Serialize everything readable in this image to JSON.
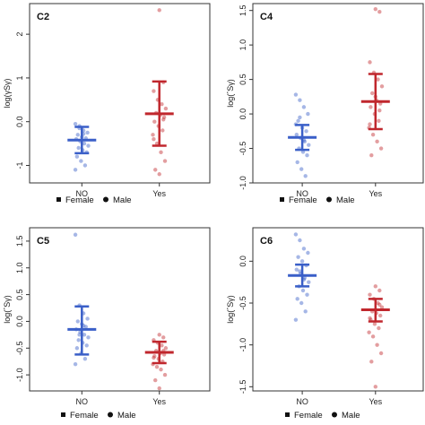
{
  "chart_data": [
    {
      "type": "scatter",
      "title": "C2",
      "ylabel": "log(γSγ)",
      "categories": [
        "NO",
        "Yes"
      ],
      "ylim": [
        -1.4,
        2.7
      ],
      "yticks": [
        -1,
        0,
        1,
        2
      ],
      "series": [
        {
          "category": "NO",
          "color": "#3a5fc8",
          "mean": -0.42,
          "lower": -0.72,
          "upper": -0.12,
          "points": [
            -0.05,
            -0.1,
            -0.2,
            -0.25,
            -0.3,
            -0.35,
            -0.38,
            -0.4,
            -0.45,
            -0.5,
            -0.55,
            -0.6,
            -0.65,
            -0.7,
            -0.8,
            -0.9,
            -1.0,
            -1.1,
            -0.15,
            -0.28
          ]
        },
        {
          "category": "Yes",
          "color": "#c0272d",
          "mean": 0.18,
          "lower": -0.55,
          "upper": 0.92,
          "points": [
            2.55,
            0.9,
            0.7,
            0.5,
            0.4,
            0.3,
            0.2,
            0.15,
            0.1,
            0.0,
            -0.1,
            -0.2,
            -0.3,
            -0.5,
            -0.7,
            -0.9,
            -1.1,
            -1.2,
            0.05,
            -0.4
          ]
        }
      ],
      "legend": [
        "Female",
        "Male"
      ]
    },
    {
      "type": "scatter",
      "title": "C4",
      "ylabel": "log(ˆSγ)",
      "categories": [
        "NO",
        "Yes"
      ],
      "ylim": [
        -1.0,
        1.6
      ],
      "yticks": [
        -1.0,
        -0.5,
        0.0,
        0.5,
        1.0,
        1.5
      ],
      "series": [
        {
          "category": "NO",
          "color": "#3a5fc8",
          "mean": -0.34,
          "lower": -0.52,
          "upper": -0.16,
          "points": [
            0.28,
            0.2,
            0.1,
            0.0,
            -0.1,
            -0.2,
            -0.25,
            -0.3,
            -0.35,
            -0.4,
            -0.45,
            -0.5,
            -0.55,
            -0.6,
            -0.7,
            -0.8,
            -0.9,
            -0.15,
            -0.05,
            -0.38
          ]
        },
        {
          "category": "Yes",
          "color": "#c0272d",
          "mean": 0.18,
          "lower": -0.22,
          "upper": 0.58,
          "points": [
            1.52,
            1.48,
            0.75,
            0.6,
            0.5,
            0.4,
            0.3,
            0.2,
            0.15,
            0.1,
            0.0,
            -0.1,
            -0.2,
            -0.3,
            -0.4,
            -0.5,
            -0.6,
            0.25,
            0.05,
            -0.15
          ]
        }
      ],
      "legend": [
        "Female",
        "Male"
      ]
    },
    {
      "type": "scatter",
      "title": "C5",
      "ylabel": "log(ˆSγ)",
      "categories": [
        "NO",
        "Yes"
      ],
      "ylim": [
        -1.3,
        1.75
      ],
      "yticks": [
        -1.0,
        -0.5,
        0.0,
        0.5,
        1.0,
        1.5
      ],
      "series": [
        {
          "category": "NO",
          "color": "#3a5fc8",
          "mean": -0.15,
          "lower": -0.62,
          "upper": 0.28,
          "points": [
            1.62,
            0.3,
            0.15,
            0.05,
            0.0,
            -0.05,
            -0.1,
            -0.15,
            -0.2,
            -0.25,
            -0.3,
            -0.35,
            -0.4,
            -0.45,
            -0.5,
            -0.6,
            -0.7,
            -0.8,
            -0.25,
            -0.08
          ]
        },
        {
          "category": "Yes",
          "color": "#c0272d",
          "mean": -0.58,
          "lower": -0.78,
          "upper": -0.38,
          "points": [
            -0.25,
            -0.3,
            -0.35,
            -0.4,
            -0.45,
            -0.5,
            -0.55,
            -0.6,
            -0.62,
            -0.65,
            -0.7,
            -0.75,
            -0.8,
            -0.85,
            -0.9,
            -1.0,
            -1.1,
            -1.25,
            -0.55,
            -0.68
          ]
        }
      ],
      "legend": [
        "Female",
        "Male"
      ]
    },
    {
      "type": "scatter",
      "title": "C6",
      "ylabel": "log(ˆSγ)",
      "categories": [
        "NO",
        "Yes"
      ],
      "ylim": [
        -1.55,
        0.4
      ],
      "yticks": [
        -1.5,
        -1.0,
        -0.5,
        0.0
      ],
      "series": [
        {
          "category": "NO",
          "color": "#3a5fc8",
          "mean": -0.17,
          "lower": -0.3,
          "upper": -0.04,
          "points": [
            0.32,
            0.25,
            0.15,
            0.1,
            0.05,
            0.0,
            -0.05,
            -0.1,
            -0.15,
            -0.2,
            -0.25,
            -0.3,
            -0.35,
            -0.4,
            -0.45,
            -0.5,
            -0.6,
            -0.7,
            -0.12,
            -0.22
          ]
        },
        {
          "category": "Yes",
          "color": "#c0272d",
          "mean": -0.58,
          "lower": -0.72,
          "upper": -0.45,
          "points": [
            -0.3,
            -0.35,
            -0.4,
            -0.45,
            -0.5,
            -0.55,
            -0.6,
            -0.62,
            -0.65,
            -0.7,
            -0.75,
            -0.8,
            -0.85,
            -0.9,
            -1.0,
            -1.1,
            -1.2,
            -1.5,
            -0.52,
            -0.68
          ]
        }
      ],
      "legend": [
        "Female",
        "Male"
      ]
    }
  ]
}
